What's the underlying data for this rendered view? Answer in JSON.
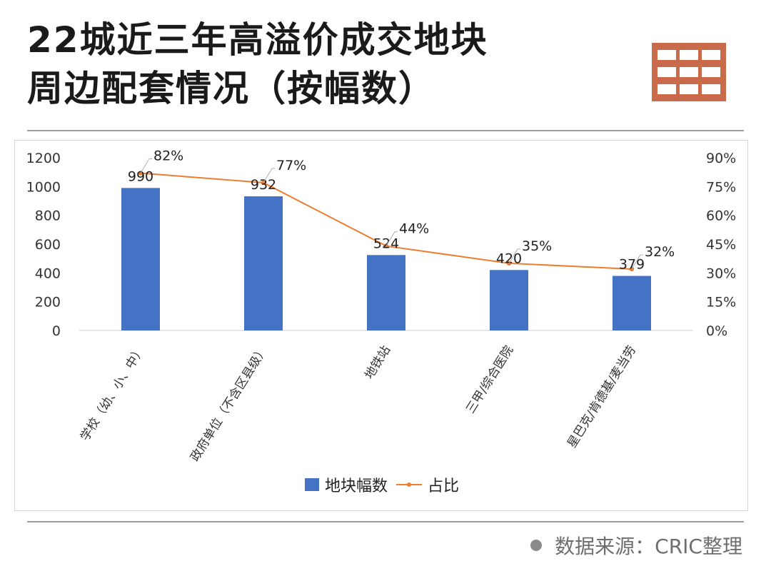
{
  "title_line1": "22城近三年高溢价成交地块",
  "title_line2": "周边配套情况（按幅数）",
  "source": "数据来源：CRIC整理",
  "colors": {
    "bar": "#4472c4",
    "line": "#ed7d31",
    "icon": "#c96a4a"
  },
  "chart_data": {
    "type": "bar",
    "categories": [
      "学校（幼、小、中）",
      "政府单位（不含区县级）",
      "地铁站",
      "三甲/综合医院",
      "星巴克/肯德基/麦当劳"
    ],
    "series": [
      {
        "name": "地块幅数",
        "type": "bar",
        "axis": "left",
        "values": [
          990,
          932,
          524,
          420,
          379
        ]
      },
      {
        "name": "占比",
        "type": "line",
        "axis": "right",
        "values": [
          82,
          77,
          44,
          35,
          32
        ]
      }
    ],
    "data_labels_bar": [
      "990",
      "932",
      "524",
      "420",
      "379"
    ],
    "data_labels_line": [
      "82%",
      "77%",
      "44%",
      "35%",
      "32%"
    ],
    "y_left": {
      "min": 0,
      "max": 1200,
      "ticks": [
        "0",
        "200",
        "400",
        "600",
        "800",
        "1000",
        "1200"
      ]
    },
    "y_right": {
      "min": 0,
      "max": 90,
      "ticks": [
        "0%",
        "15%",
        "30%",
        "45%",
        "60%",
        "75%",
        "90%"
      ]
    },
    "legend": {
      "position": "bottom",
      "items": [
        "地块幅数",
        "占比"
      ]
    },
    "grid": false
  }
}
